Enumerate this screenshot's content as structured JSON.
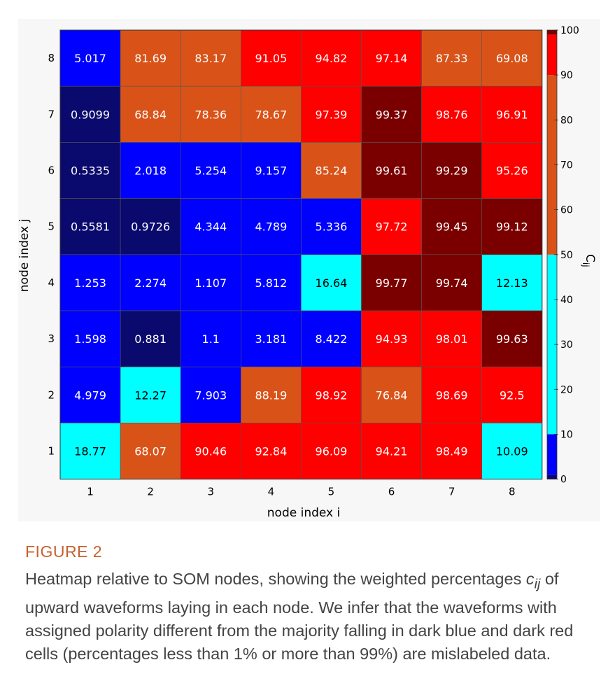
{
  "chart_data": {
    "type": "heatmap",
    "title": "",
    "xlabel": "node index i",
    "ylabel": "node index j",
    "colorbar_label": "C",
    "colorbar_label_sub": "ij",
    "x_categories": [
      "1",
      "2",
      "3",
      "4",
      "5",
      "6",
      "7",
      "8"
    ],
    "y_categories": [
      "1",
      "2",
      "3",
      "4",
      "5",
      "6",
      "7",
      "8"
    ],
    "values_by_row_j": {
      "8": [
        "5.017",
        "81.69",
        "83.17",
        "91.05",
        "94.82",
        "97.14",
        "87.33",
        "69.08"
      ],
      "7": [
        "0.9099",
        "68.84",
        "78.36",
        "78.67",
        "97.39",
        "99.37",
        "98.76",
        "96.91"
      ],
      "6": [
        "0.5335",
        "2.018",
        "5.254",
        "9.157",
        "85.24",
        "99.61",
        "99.29",
        "95.26"
      ],
      "5": [
        "0.5581",
        "0.9726",
        "4.344",
        "4.789",
        "5.336",
        "97.72",
        "99.45",
        "99.12"
      ],
      "4": [
        "1.253",
        "2.274",
        "1.107",
        "5.812",
        "16.64",
        "99.77",
        "99.74",
        "12.13"
      ],
      "3": [
        "1.598",
        "0.881",
        "1.1",
        "3.181",
        "8.422",
        "94.93",
        "98.01",
        "99.63"
      ],
      "2": [
        "4.979",
        "12.27",
        "7.903",
        "88.19",
        "98.92",
        "76.84",
        "98.69",
        "92.5"
      ],
      "1": [
        "18.77",
        "68.07",
        "90.46",
        "92.84",
        "96.09",
        "94.21",
        "98.49",
        "10.09"
      ]
    },
    "row_order_top_to_bottom": [
      "8",
      "7",
      "6",
      "5",
      "4",
      "3",
      "2",
      "1"
    ],
    "colorbar": {
      "range": [
        0,
        100
      ],
      "ticks": [
        "0",
        "10",
        "20",
        "30",
        "40",
        "50",
        "60",
        "70",
        "80",
        "90",
        "100"
      ],
      "bins": [
        {
          "min": 0,
          "max": 1,
          "color": "#0a0a6e"
        },
        {
          "min": 1,
          "max": 10,
          "color": "#0000ff"
        },
        {
          "min": 10,
          "max": 50,
          "color": "#00ffff"
        },
        {
          "min": 50,
          "max": 90,
          "color": "#d95319"
        },
        {
          "min": 90,
          "max": 99,
          "color": "#ff0000"
        },
        {
          "min": 99,
          "max": 100,
          "color": "#7a0000"
        }
      ]
    },
    "grid": false
  },
  "caption": {
    "heading": "FIGURE 2",
    "text_before_symbol": "Heatmap relative to SOM nodes, showing the weighted percentages ",
    "symbol": "c",
    "symbol_sub": "ij",
    "text_after_symbol": " of upward waveforms laying in each node. We infer that the waveforms with assigned polarity different from the majority falling in dark blue and dark red cells (percentages less than 1% or more than 99%) are mislabeled data."
  }
}
